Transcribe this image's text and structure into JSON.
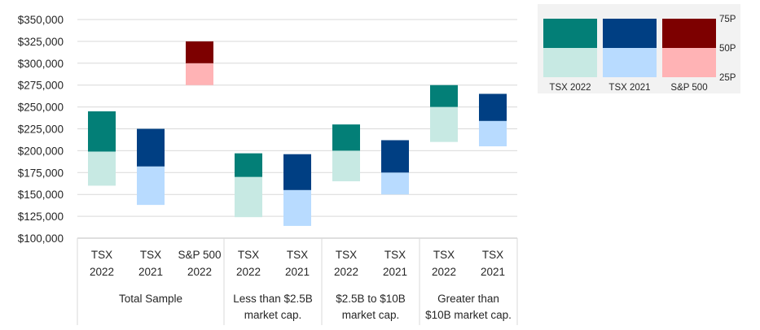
{
  "chart_data": {
    "type": "bar",
    "subtype": "floating-percentile-range",
    "y_axis": {
      "min": 100000,
      "max": 350000,
      "step": 25000,
      "tick_labels": [
        "$350,000",
        "$325,000",
        "$300,000",
        "$275,000",
        "$250,000",
        "$225,000",
        "$200,000",
        "$175,000",
        "$150,000",
        "$125,000",
        "$100,000"
      ]
    },
    "grid": true,
    "groups": [
      {
        "label": [
          "Total Sample"
        ],
        "categories": [
          {
            "label": [
              "TSX",
              "2022"
            ],
            "series": "TSX 2022",
            "p25": 160000,
            "p50": 199000,
            "p75": 245000
          },
          {
            "label": [
              "TSX",
              "2021"
            ],
            "series": "TSX 2021",
            "p25": 138000,
            "p50": 182000,
            "p75": 225000
          },
          {
            "label": [
              "S&P 500",
              "2022"
            ],
            "series": "S&P 500",
            "p25": 275000,
            "p50": 300000,
            "p75": 325000
          }
        ]
      },
      {
        "label": [
          "Less than $2.5B",
          "market cap."
        ],
        "categories": [
          {
            "label": [
              "TSX",
              "2022"
            ],
            "series": "TSX 2022",
            "p25": 124000,
            "p50": 170000,
            "p75": 197000
          },
          {
            "label": [
              "TSX",
              "2021"
            ],
            "series": "TSX 2021",
            "p25": 114000,
            "p50": 155000,
            "p75": 196000
          }
        ]
      },
      {
        "label": [
          "$2.5B to $10B",
          "market cap."
        ],
        "categories": [
          {
            "label": [
              "TSX",
              "2022"
            ],
            "series": "TSX 2022",
            "p25": 165000,
            "p50": 200000,
            "p75": 230000
          },
          {
            "label": [
              "TSX",
              "2021"
            ],
            "series": "TSX 2021",
            "p25": 150000,
            "p50": 175000,
            "p75": 212000
          }
        ]
      },
      {
        "label": [
          "Greater than",
          "$10B market cap."
        ],
        "categories": [
          {
            "label": [
              "TSX",
              "2022"
            ],
            "series": "TSX 2022",
            "p25": 210000,
            "p50": 250000,
            "p75": 275000
          },
          {
            "label": [
              "TSX",
              "2021"
            ],
            "series": "TSX 2021",
            "p25": 205000,
            "p50": 234000,
            "p75": 265000
          }
        ]
      }
    ],
    "series_colors": {
      "TSX 2022": {
        "upper": "#037f77",
        "lower": "#c7e9e3"
      },
      "TSX 2021": {
        "upper": "#003f83",
        "lower": "#b8dbff"
      },
      "S&P 500": {
        "upper": "#7d0000",
        "lower": "#ffb3b5"
      }
    },
    "legend": {
      "placement": "top-right",
      "items": [
        "TSX 2022",
        "TSX 2021",
        "S&P 500"
      ],
      "percentile_labels": [
        "75P",
        "50P",
        "25P"
      ]
    }
  }
}
